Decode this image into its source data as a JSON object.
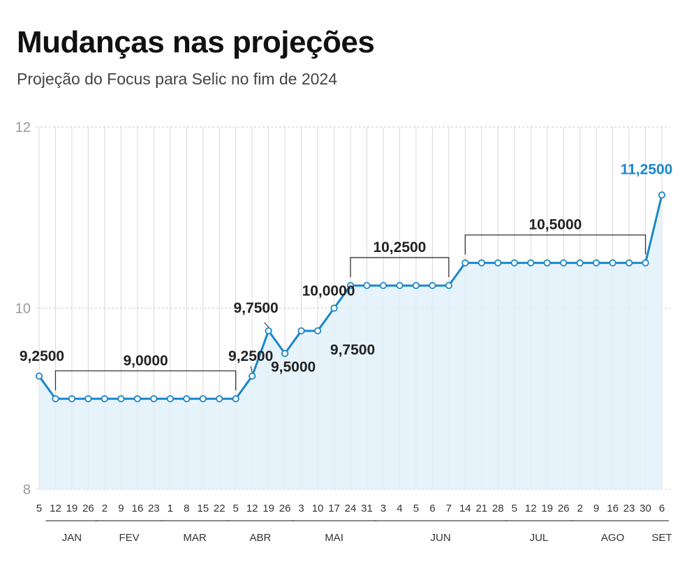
{
  "title": "Mudanças nas projeções",
  "subtitle": "Projeção do Focus para Selic no fim de 2024",
  "colors": {
    "line": "#1b87c9",
    "area": "#e3f1fa",
    "grid": "#d8d8d8",
    "bracket": "#333333",
    "highlight": "#1b87c9"
  },
  "chart_data": {
    "type": "area",
    "ylim": [
      8,
      12
    ],
    "yticks": [
      "8",
      "10",
      "12"
    ],
    "grid": true,
    "x": [
      "5",
      "12",
      "19",
      "26",
      "2",
      "9",
      "16",
      "23",
      "1",
      "8",
      "15",
      "22",
      "5",
      "12",
      "19",
      "26",
      "3",
      "10",
      "17",
      "24",
      "31",
      "3",
      "4",
      "5",
      "6",
      "7",
      "14",
      "21",
      "28",
      "5",
      "12",
      "19",
      "26",
      "2",
      "9",
      "16",
      "23",
      "30",
      "6"
    ],
    "months": [
      {
        "label": "JAN",
        "from": 1,
        "to": 3
      },
      {
        "label": "FEV",
        "from": 4,
        "to": 7
      },
      {
        "label": "MAR",
        "from": 8,
        "to": 11
      },
      {
        "label": "ABR",
        "from": 12,
        "to": 15
      },
      {
        "label": "MAI",
        "from": 16,
        "to": 20
      },
      {
        "label": "JUN",
        "from": 21,
        "to": 28
      },
      {
        "label": "JUL",
        "from": 29,
        "to": 32
      },
      {
        "label": "AGO",
        "from": 33,
        "to": 37
      },
      {
        "label": "SET",
        "from": 38,
        "to": 38
      }
    ],
    "series": [
      {
        "values": [
          9.25,
          9.0,
          9.0,
          9.0,
          9.0,
          9.0,
          9.0,
          9.0,
          9.0,
          9.0,
          9.0,
          9.0,
          9.0,
          9.25,
          9.75,
          9.5,
          9.75,
          9.75,
          10.0,
          10.25,
          10.25,
          10.25,
          10.25,
          10.25,
          10.25,
          10.25,
          10.5,
          10.5,
          10.5,
          10.5,
          10.5,
          10.5,
          10.5,
          10.5,
          10.5,
          10.5,
          10.5,
          10.5,
          11.25
        ]
      }
    ],
    "annotations": [
      {
        "text": "9,2500",
        "index": 0,
        "value": 9.25
      },
      {
        "text": "9,0000",
        "from": 1,
        "to": 12,
        "value": 9.0,
        "bracket": true
      },
      {
        "text": "9,2500",
        "index": 13,
        "value": 9.25
      },
      {
        "text": "9,7500",
        "index": 14,
        "value": 9.75
      },
      {
        "text": "9,5000",
        "index": 15,
        "value": 9.5
      },
      {
        "text": "10,0000",
        "index": 18,
        "value": 10.0
      },
      {
        "text": "9,7500",
        "index": 17,
        "value": 9.75
      },
      {
        "text": "10,2500",
        "from": 19,
        "to": 25,
        "value": 10.25,
        "bracket": true
      },
      {
        "text": "10,5000",
        "from": 26,
        "to": 37,
        "value": 10.5,
        "bracket": true
      },
      {
        "text": "11,2500",
        "index": 38,
        "value": 11.25,
        "highlight": true
      }
    ]
  }
}
